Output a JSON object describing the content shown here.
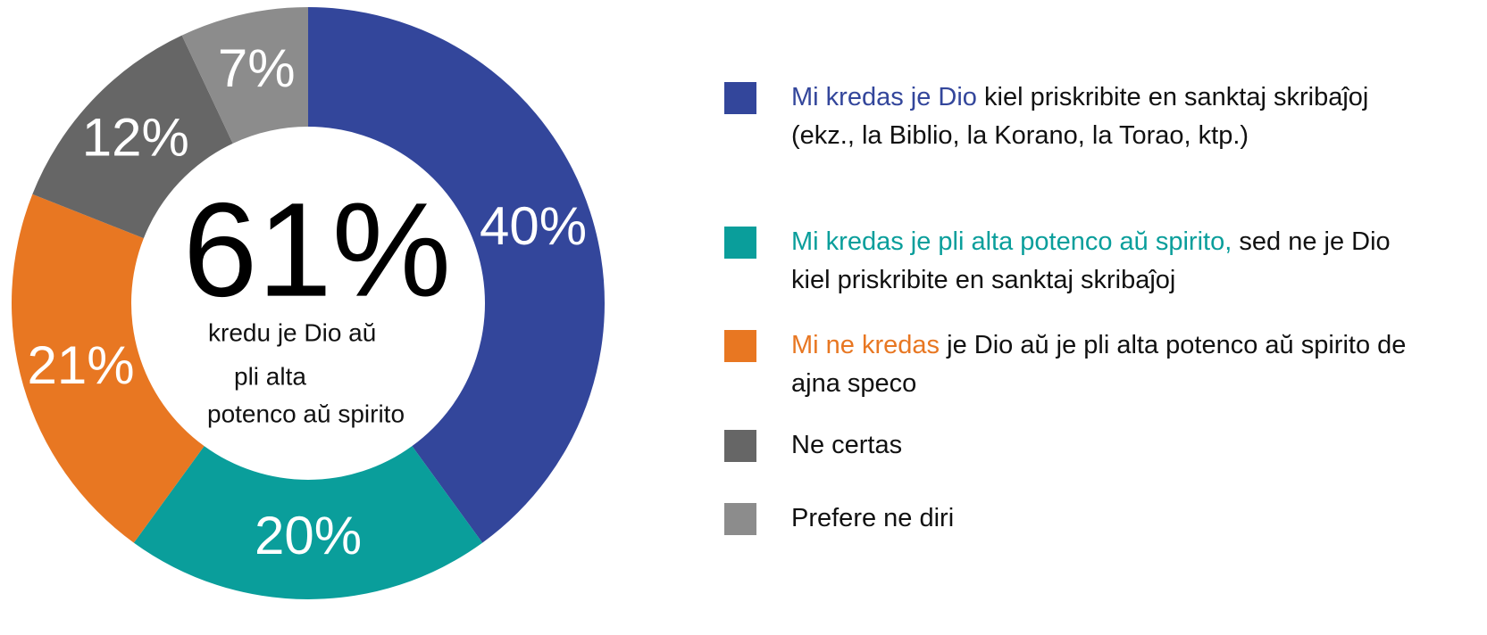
{
  "chart_data": {
    "type": "donut",
    "categories": [
      {
        "highlight": "Mi kredas je Dio",
        "text": "kiel priskribite en sanktaj skribaĵoj (ekz., la Biblio, la Korano, la Torao, ktp.)"
      },
      {
        "highlight": "Mi kredas je pli alta potenco aŭ spirito,",
        "text": "sed ne je Dio kiel priskribite en sanktaj skribaĵoj"
      },
      {
        "highlight": "Mi ne kredas",
        "text": "je Dio aŭ je pli alta potenco aŭ spirito de ajna speco"
      },
      {
        "text": "Ne certas"
      },
      {
        "text": "Prefere ne diri"
      }
    ],
    "values": [
      40,
      20,
      21,
      12,
      7
    ],
    "value_labels": [
      "40%",
      "20%",
      "21%",
      "12%",
      "7%"
    ],
    "colors": [
      "#33469b",
      "#0a9e9b",
      "#e87722",
      "#666666",
      "#8c8c8c"
    ],
    "center_label": "61%",
    "center_text": [
      "kredu je Dio aŭ",
      "pli alta",
      "potenco aŭ spirito"
    ]
  }
}
